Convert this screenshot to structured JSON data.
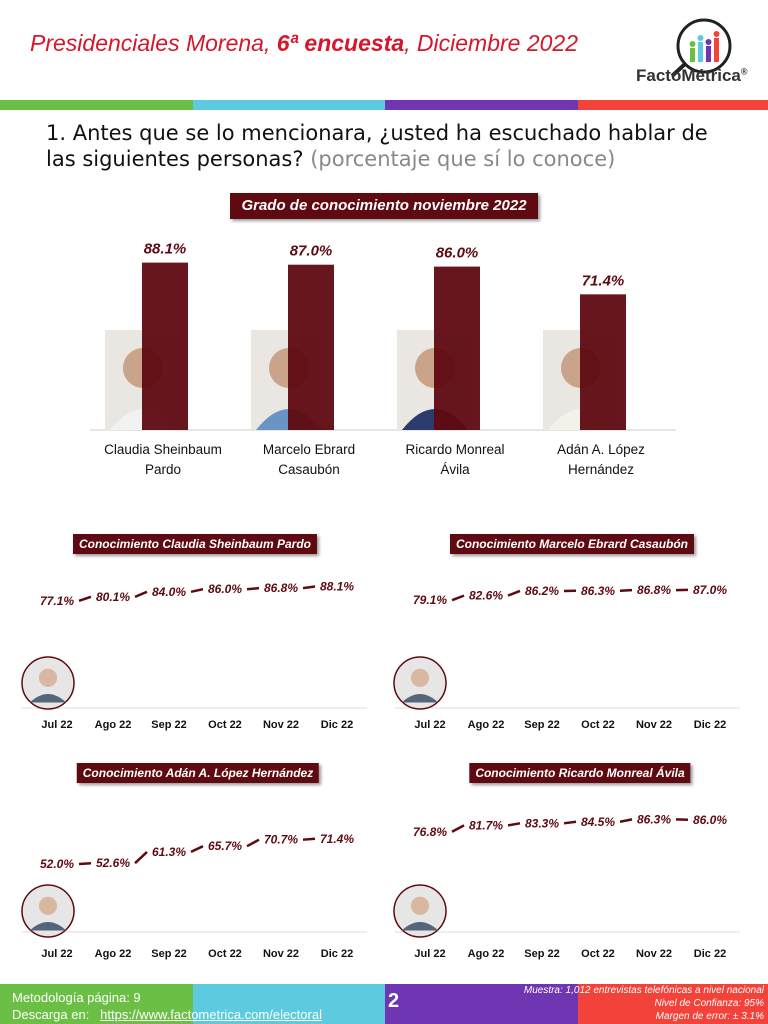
{
  "header": {
    "title_pre": "Presidenciales Morena, ",
    "title_bold": "6ª encuesta",
    "title_post": ", Diciembre  2022",
    "logo_text": "FactoMétrica",
    "logo_mark": "®"
  },
  "colors": {
    "green": "#6cbf45",
    "cyan": "#5ccbe0",
    "purple": "#6f35b3",
    "red": "#f2423a",
    "bar": "#5e0a10",
    "title_red": "#d6162a"
  },
  "question": {
    "text": "1. Antes que se lo mencionara, ¿usted ha escuchado hablar de las siguientes personas?",
    "sub": "(porcentaje que sí lo conoce)"
  },
  "chart_data": [
    {
      "type": "bar",
      "title": "Grado de conocimiento noviembre 2022",
      "categories": [
        "Claudia Sheinbaum Pardo",
        "Marcelo Ebrard Casaubón",
        "Ricardo Monreal Ávila",
        "Adán A. López Hernández"
      ],
      "values": [
        88.1,
        87.0,
        86.0,
        71.4
      ],
      "labels": [
        "88.1%",
        "87.0%",
        "86.0%",
        "71.4%"
      ],
      "names_l1": [
        "Claudia Sheinbaum",
        "Marcelo Ebrard",
        "Ricardo Monreal",
        "Adán A. López"
      ],
      "names_l2": [
        "Pardo",
        "Casaubón",
        "Ávila",
        "Hernández"
      ]
    },
    {
      "type": "line",
      "title": "Conocimiento Claudia Sheinbaum Pardo",
      "categories": [
        "Jul 22",
        "Ago 22",
        "Sep 22",
        "Oct 22",
        "Nov 22",
        "Dic 22"
      ],
      "values": [
        77.1,
        80.1,
        84.0,
        86.0,
        86.8,
        88.1
      ],
      "labels": [
        "77.1%",
        "80.1%",
        "84.0%",
        "86.0%",
        "86.8%",
        "88.1%"
      ]
    },
    {
      "type": "line",
      "title": "Conocimiento Marcelo Ebrard Casaubón",
      "categories": [
        "Jul 22",
        "Ago 22",
        "Sep 22",
        "Oct 22",
        "Nov 22",
        "Dic 22"
      ],
      "values": [
        79.1,
        82.6,
        86.2,
        86.3,
        86.8,
        87.0
      ],
      "labels": [
        "79.1%",
        "82.6%",
        "86.2%",
        "86.3%",
        "86.8%",
        "87.0%"
      ]
    },
    {
      "type": "line",
      "title": "Conocimiento Adán A. López Hernández",
      "categories": [
        "Jul 22",
        "Ago 22",
        "Sep 22",
        "Oct 22",
        "Nov 22",
        "Dic 22"
      ],
      "values": [
        52.0,
        52.6,
        61.3,
        65.7,
        70.7,
        71.4
      ],
      "labels": [
        "52.0%",
        "52.6%",
        "61.3%",
        "65.7%",
        "70.7%",
        "71.4%"
      ]
    },
    {
      "type": "line",
      "title": "Conocimiento Ricardo Monreal Ávila",
      "categories": [
        "Jul 22",
        "Ago 22",
        "Sep 22",
        "Oct 22",
        "Nov 22",
        "Dic 22"
      ],
      "values": [
        76.8,
        81.7,
        83.3,
        84.5,
        86.3,
        86.0
      ],
      "labels": [
        "76.8%",
        "81.7%",
        "83.3%",
        "84.5%",
        "86.3%",
        "86.0%"
      ]
    }
  ],
  "footer": {
    "metodologia": "Metodología página: 9",
    "descarga": "Descarga en:",
    "url": "https://www.factometrica.com/electoral",
    "page": "2",
    "muestra": "Muestra:  1,012 entrevistas telefónicas a nivel nacional",
    "confianza": "Nivel de Confianza: 95%",
    "error": "Margen de error: ± 3.1%"
  }
}
